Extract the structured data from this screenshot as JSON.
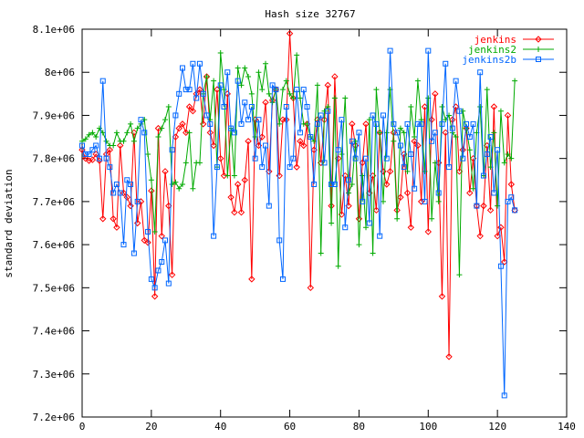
{
  "chart_data": {
    "type": "line",
    "title": "Hash size 32767",
    "xlabel": "",
    "ylabel": "standard deviation",
    "xlim": [
      0,
      140
    ],
    "ylim": [
      7200000,
      8100000
    ],
    "grid": false,
    "legend_placement": "top-right",
    "x_ticks": [
      {
        "value": 0,
        "label": "0"
      },
      {
        "value": 20,
        "label": "20"
      },
      {
        "value": 40,
        "label": "40"
      },
      {
        "value": 60,
        "label": "60"
      },
      {
        "value": 80,
        "label": "80"
      },
      {
        "value": 100,
        "label": "100"
      },
      {
        "value": 120,
        "label": "120"
      },
      {
        "value": 140,
        "label": "140"
      }
    ],
    "y_ticks": [
      {
        "value": 7200000,
        "label": "7.2e+06"
      },
      {
        "value": 7300000,
        "label": "7.3e+06"
      },
      {
        "value": 7400000,
        "label": "7.4e+06"
      },
      {
        "value": 7500000,
        "label": "7.5e+06"
      },
      {
        "value": 7600000,
        "label": "7.6e+06"
      },
      {
        "value": 7700000,
        "label": "7.7e+06"
      },
      {
        "value": 7800000,
        "label": "7.8e+06"
      },
      {
        "value": 7900000,
        "label": "7.9e+06"
      },
      {
        "value": 8000000,
        "label": "8e+06"
      },
      {
        "value": 8100000,
        "label": "8.1e+06"
      }
    ],
    "series": [
      {
        "name": "jenkins",
        "color": "#ff0000",
        "marker": "diamond",
        "values": [
          7820000,
          7800000,
          7795000,
          7797000,
          7810000,
          7795000,
          7660000,
          7810000,
          7820000,
          7660000,
          7640000,
          7830000,
          7720000,
          7710000,
          7690000,
          7860000,
          7650000,
          7700000,
          7610000,
          7605000,
          7725000,
          7480000,
          7870000,
          7620000,
          7770000,
          7690000,
          7530000,
          7850000,
          7870000,
          7880000,
          7860000,
          7920000,
          7910000,
          7950000,
          7960000,
          7880000,
          7990000,
          7860000,
          7830000,
          7960000,
          7800000,
          7760000,
          7950000,
          7710000,
          7675000,
          7740000,
          7675000,
          7750000,
          7840000,
          7520000,
          7890000,
          7830000,
          7850000,
          7930000,
          7770000,
          7935000,
          7960000,
          7760000,
          7890000,
          7890000,
          8090000,
          7940000,
          7780000,
          7840000,
          7830000,
          7880000,
          7500000,
          7820000,
          7890000,
          7790000,
          7890000,
          7970000,
          7690000,
          7990000,
          7800000,
          7670000,
          7760000,
          7690000,
          7880000,
          7830000,
          7660000,
          7790000,
          7880000,
          7720000,
          7760000,
          7680000,
          7860000,
          7770000,
          7740000,
          7770000,
          7860000,
          7680000,
          7710000,
          7810000,
          7720000,
          7640000,
          7840000,
          7830000,
          7700000,
          7920000,
          7630000,
          7890000,
          7950000,
          7790000,
          7480000,
          7860000,
          7340000,
          7890000,
          7920000,
          7770000,
          7820000,
          7870000,
          7720000,
          7800000,
          7690000,
          7620000,
          7690000,
          7830000,
          7680000,
          7920000,
          7620000,
          7640000,
          7560000,
          7900000,
          7740000,
          7680000
        ]
      },
      {
        "name": "jenkins2",
        "color": "#00aa00",
        "marker": "plus",
        "values": [
          7840000,
          7845000,
          7855000,
          7860000,
          7850000,
          7870000,
          7860000,
          7840000,
          7830000,
          7830000,
          7860000,
          7840000,
          7840000,
          7860000,
          7880000,
          7840000,
          7870000,
          7880000,
          7890000,
          7810000,
          7750000,
          7630000,
          7850000,
          7870000,
          7890000,
          7920000,
          7740000,
          7745000,
          7730000,
          7740000,
          7790000,
          7860000,
          7730000,
          7790000,
          7790000,
          7950000,
          7990000,
          7890000,
          7980000,
          7780000,
          8045000,
          7960000,
          7760000,
          7870000,
          7760000,
          8010000,
          7970000,
          8010000,
          7990000,
          7950000,
          7850000,
          8000000,
          7960000,
          8020000,
          7950000,
          7930000,
          7960000,
          7880000,
          7960000,
          7980000,
          7950000,
          7940000,
          8040000,
          7940000,
          7880000,
          7880000,
          7850000,
          7840000,
          7970000,
          7580000,
          7910000,
          7920000,
          7650000,
          7940000,
          7550000,
          7810000,
          7940000,
          7720000,
          7740000,
          7840000,
          7600000,
          7760000,
          7640000,
          7890000,
          7580000,
          7960000,
          7860000,
          7700000,
          7860000,
          7960000,
          7840000,
          7660000,
          7870000,
          7860000,
          7770000,
          7920000,
          7850000,
          7980000,
          7890000,
          7770000,
          7940000,
          7660000,
          7790000,
          7700000,
          7920000,
          7890000,
          7900000,
          7860000,
          7850000,
          7530000,
          7910000,
          7870000,
          7820000,
          7730000,
          7860000,
          7920000,
          7760000,
          7960000,
          7780000,
          7860000,
          7690000,
          7910000,
          7790000,
          7810000,
          7800000,
          7980000
        ]
      },
      {
        "name": "jenkins2b",
        "color": "#0066ff",
        "marker": "square",
        "values": [
          7830000,
          7810000,
          7810000,
          7820000,
          7830000,
          7800000,
          7980000,
          7800000,
          7780000,
          7720000,
          7740000,
          7720000,
          7600000,
          7750000,
          7740000,
          7580000,
          7700000,
          7890000,
          7860000,
          7630000,
          7520000,
          7500000,
          7540000,
          7560000,
          7610000,
          7510000,
          7820000,
          7900000,
          7950000,
          8010000,
          7960000,
          7960000,
          8020000,
          7940000,
          8020000,
          7950000,
          7900000,
          7880000,
          7620000,
          7780000,
          7970000,
          7920000,
          8000000,
          7870000,
          7860000,
          7980000,
          7880000,
          7930000,
          7890000,
          7920000,
          7800000,
          7890000,
          7780000,
          7830000,
          7690000,
          7970000,
          7960000,
          7610000,
          7520000,
          7920000,
          7780000,
          7800000,
          7960000,
          7860000,
          7960000,
          7920000,
          7850000,
          7740000,
          7880000,
          7900000,
          7790000,
          7910000,
          7740000,
          7740000,
          7820000,
          7890000,
          7640000,
          7750000,
          7840000,
          7800000,
          7860000,
          7700000,
          7800000,
          7650000,
          7900000,
          7880000,
          7620000,
          7900000,
          7800000,
          8050000,
          7880000,
          7860000,
          7830000,
          7780000,
          7880000,
          7810000,
          7730000,
          7880000,
          7880000,
          7700000,
          8050000,
          7840000,
          7860000,
          7720000,
          7880000,
          8020000,
          7780000,
          7870000,
          7980000,
          7910000,
          7800000,
          7880000,
          7850000,
          7880000,
          7690000,
          8000000,
          7760000,
          7810000,
          7850000,
          7720000,
          7820000,
          7550000,
          7250000,
          7700000,
          7710000,
          7680000
        ]
      }
    ]
  }
}
